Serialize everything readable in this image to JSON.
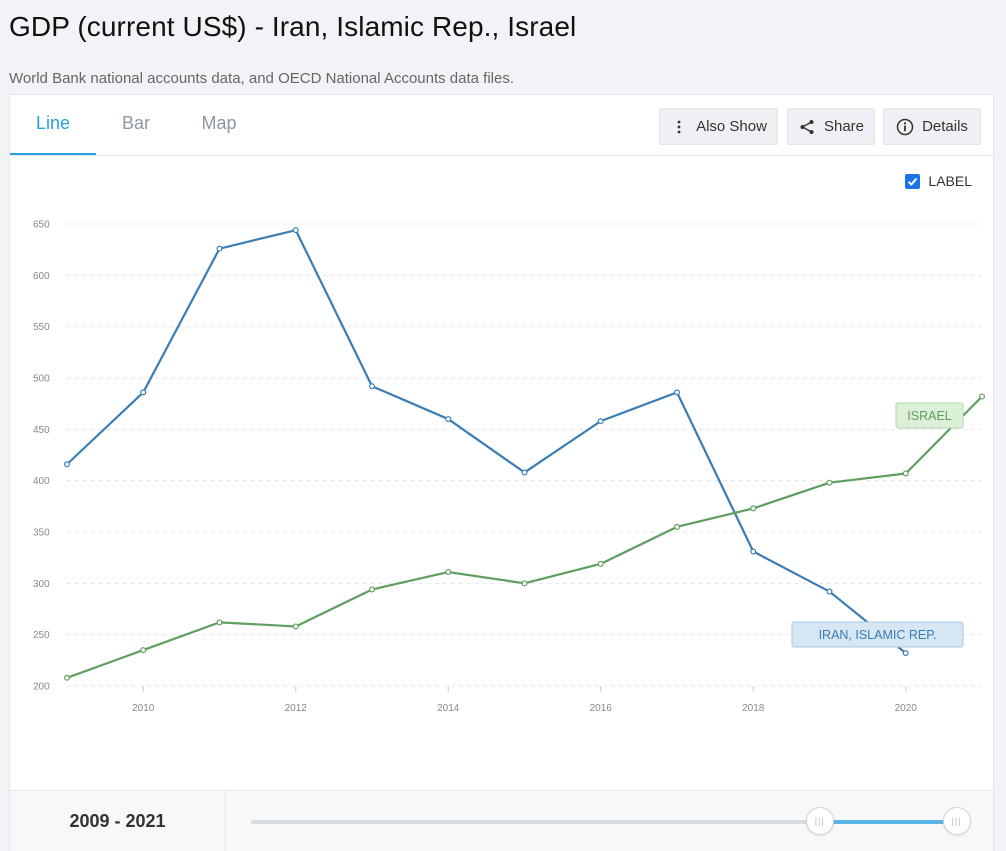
{
  "header": {
    "title": "GDP (current US$) - Iran, Islamic Rep., Israel",
    "subtitle": "World Bank national accounts data, and OECD National Accounts data files."
  },
  "tabs": [
    {
      "label": "Line",
      "active": true
    },
    {
      "label": "Bar",
      "active": false
    },
    {
      "label": "Map",
      "active": false
    }
  ],
  "toolbar": {
    "also_show_label": "Also Show",
    "share_label": "Share",
    "details_label": "Details"
  },
  "label_toggle": {
    "label": "LABEL",
    "checked": true
  },
  "chart_data": {
    "type": "line",
    "x": [
      2009,
      2010,
      2011,
      2012,
      2013,
      2014,
      2015,
      2016,
      2017,
      2018,
      2019,
      2020,
      2021
    ],
    "x_ticks": [
      "2010",
      "2012",
      "2014",
      "2016",
      "2018",
      "2020"
    ],
    "y_ticks": [
      "650",
      "600",
      "550",
      "500",
      "450",
      "400",
      "350",
      "300",
      "250",
      "200"
    ],
    "xlim": [
      2009,
      2021
    ],
    "ylim": [
      200,
      650
    ],
    "grid": true,
    "series": [
      {
        "name": "IRAN, ISLAMIC REP.",
        "color": "#3a7db5",
        "label_bg": "#d6e6f2",
        "label_border": "#a9c8e2",
        "values": [
          416,
          486,
          626,
          644,
          492,
          460,
          408,
          458,
          486,
          331,
          292,
          232,
          null
        ]
      },
      {
        "name": "ISRAEL",
        "color": "#5f9e5f",
        "label_bg": "#dcefd9",
        "label_border": "#b2d8ac",
        "values": [
          208,
          235,
          262,
          258,
          294,
          311,
          300,
          319,
          355,
          373,
          398,
          407,
          482
        ]
      }
    ]
  },
  "range": {
    "label": "2009 - 2021",
    "start_fraction": 0.79,
    "end_fraction": 0.98
  }
}
